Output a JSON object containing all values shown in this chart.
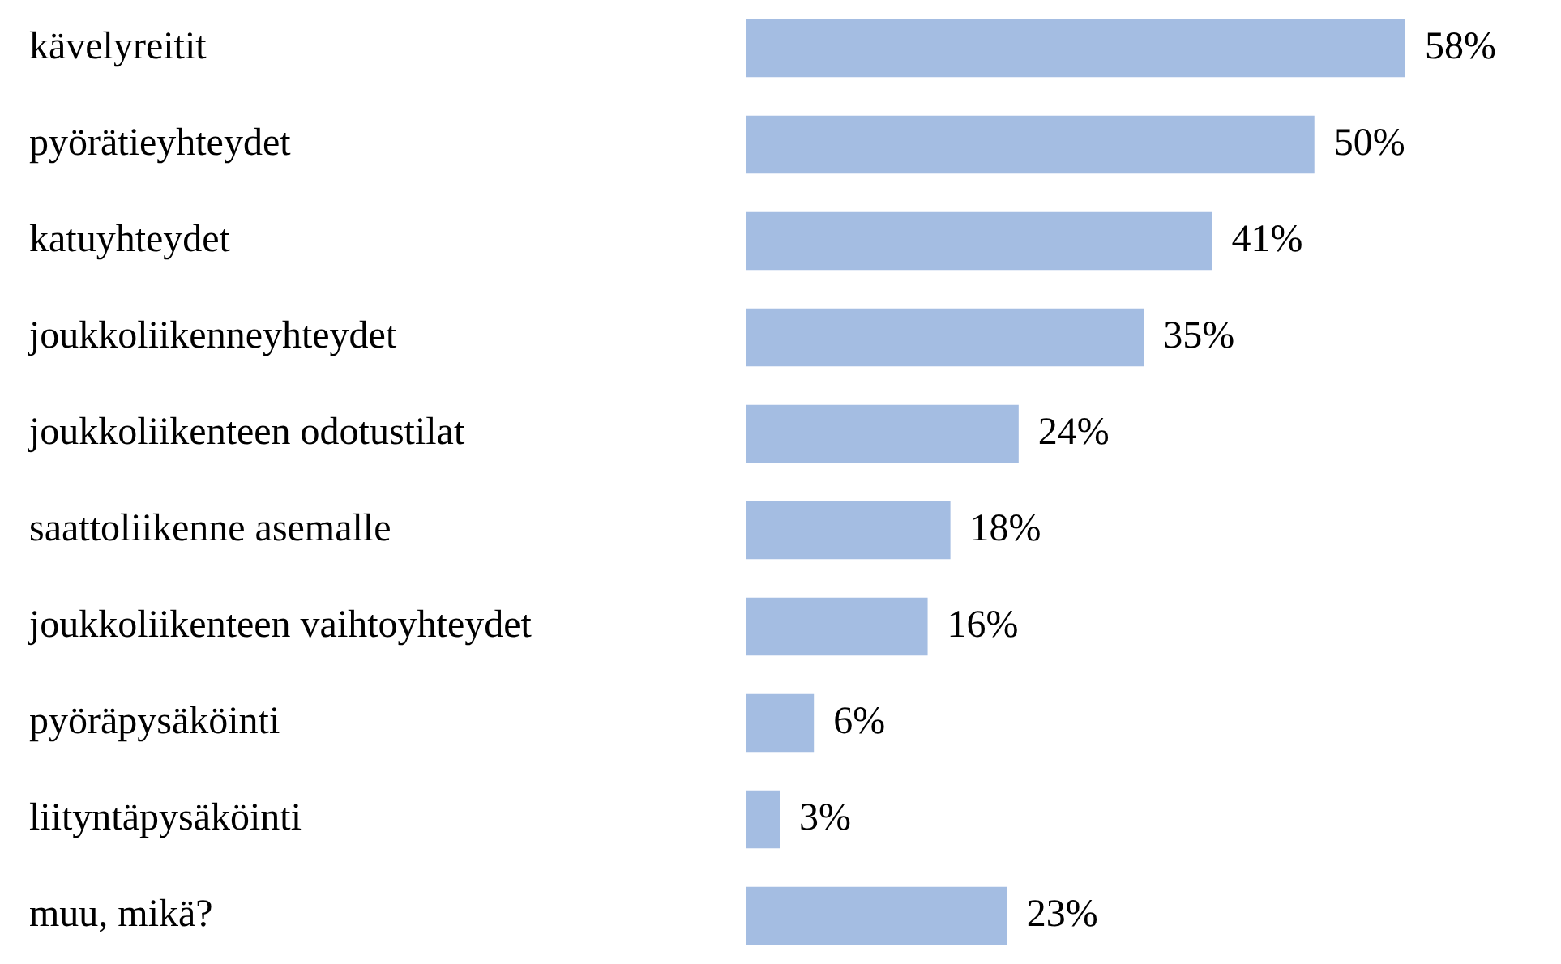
{
  "chart_data": {
    "type": "bar",
    "orientation": "horizontal",
    "categories": [
      "kävelyreitit",
      "pyörätieyhteydet",
      "katuyhteydet",
      "joukkoliikenneyhteydet",
      "joukkoliikenteen odotustilat",
      "saattoliikenne asemalle",
      "joukkoliikenteen vaihtoyhteydet",
      "pyöräpysäköinti",
      "liityntäpysäköinti",
      "muu, mikä?"
    ],
    "values": [
      58,
      50,
      41,
      35,
      24,
      18,
      16,
      6,
      3,
      23
    ],
    "value_labels": [
      "58%",
      "50%",
      "41%",
      "35%",
      "24%",
      "18%",
      "16%",
      "6%",
      "3%",
      "23%"
    ],
    "color": "#a4bde2",
    "xlim": [
      0,
      58
    ],
    "legend": false
  }
}
